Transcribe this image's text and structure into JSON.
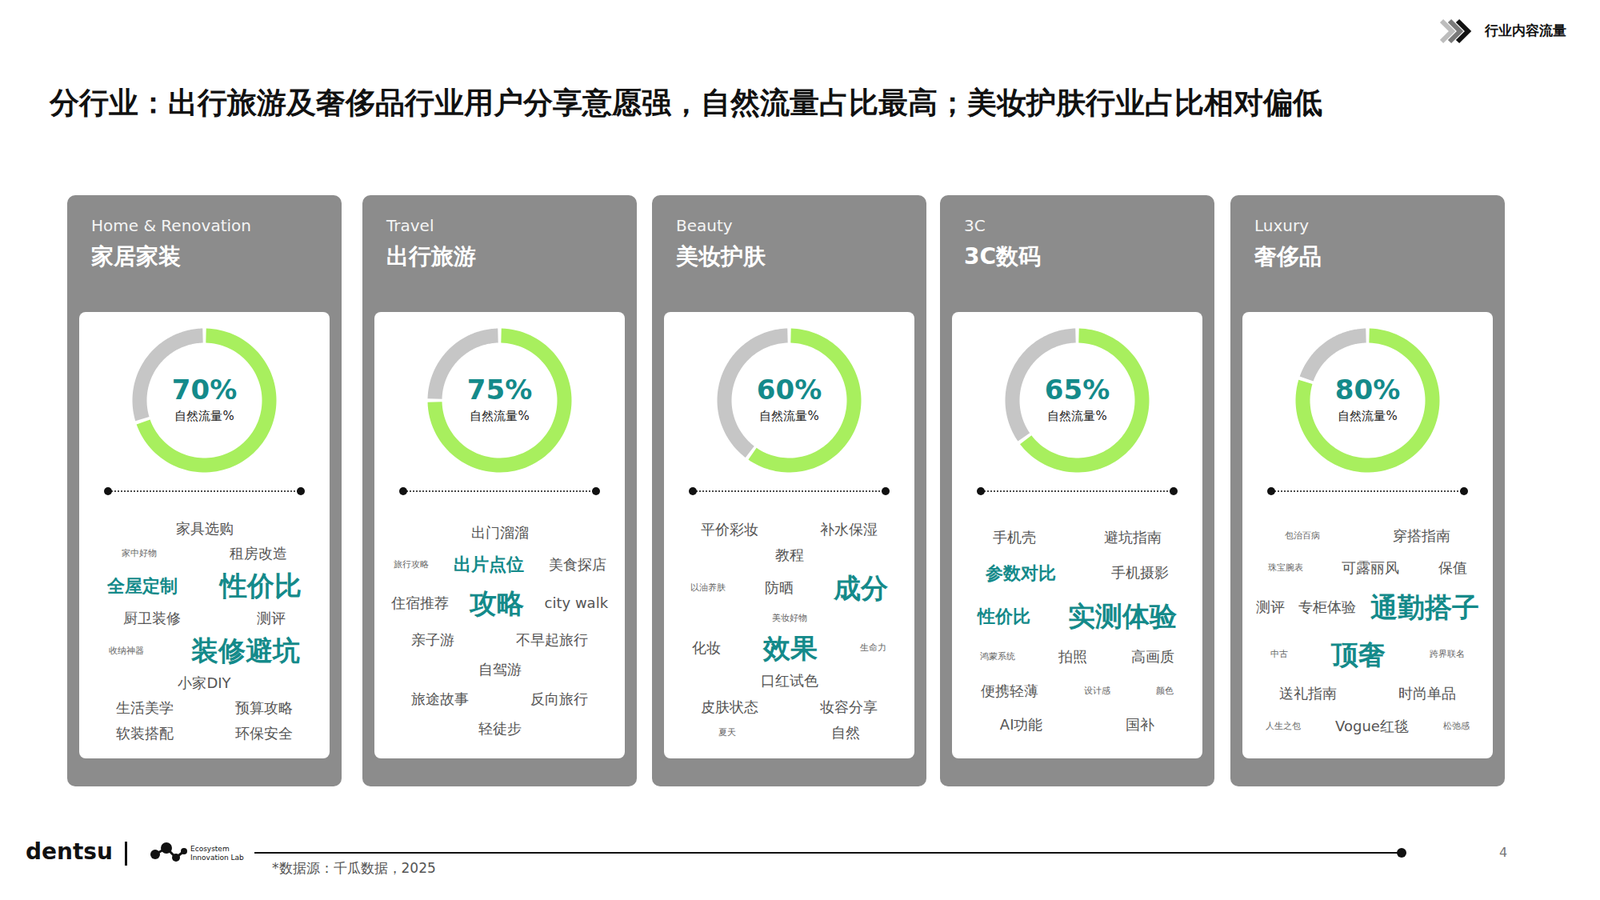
{
  "section": "行业内容流量",
  "title": "分行业：出行旅游及奢侈品行业用户分享意愿强，自然流量占比最高；美妆护肤行业占比相对偏低",
  "chart_data": [
    {
      "type": "donut",
      "subtitle": "Home & Renovation",
      "title": "家居家装",
      "categories": [
        "自然流量%",
        null
      ],
      "values": [
        70,
        30
      ],
      "value_labels": [
        "70%",
        null
      ],
      "colors": [
        "#a8ef5e",
        "#c6c6c6"
      ],
      "data_labels": true,
      "keywords": {
        "rows": [
          [
            "家具选购"
          ],
          [
            "家中好物",
            "租房改造"
          ],
          [
            "全屋定制",
            "性价比"
          ],
          [
            "厨卫装修",
            "测评"
          ],
          [
            "收纳神器",
            "装修避坑"
          ],
          [
            "小家DIY"
          ],
          [
            "生活美学",
            "预算攻略"
          ],
          [
            "软装搭配",
            "环保安全"
          ]
        ],
        "main": [
          "装修避坑",
          "性价比"
        ],
        "highlight": [
          "全屋定制"
        ],
        "small": [
          "家中好物",
          "收纳神器"
        ]
      }
    },
    {
      "type": "donut",
      "subtitle": "Travel",
      "title": "出行旅游",
      "categories": [
        "自然流量%",
        null
      ],
      "values": [
        75,
        25
      ],
      "value_labels": [
        "75%",
        null
      ],
      "colors": [
        "#a8ef5e",
        "#c6c6c6"
      ],
      "data_labels": true,
      "keywords": {
        "rows": [
          [
            "出门溜溜"
          ],
          [
            "旅行攻略",
            "出片点位",
            "美食探店"
          ],
          [
            "住宿推荐",
            "攻略",
            "city walk"
          ],
          [
            "亲子游",
            "不早起旅行"
          ],
          [
            "自驾游"
          ],
          [
            "旅途故事",
            "反向旅行"
          ],
          [
            "轻徒步"
          ]
        ],
        "main": [
          "攻略"
        ],
        "highlight": [
          "出片点位"
        ],
        "small": [
          "旅行攻略"
        ]
      }
    },
    {
      "type": "donut",
      "subtitle": "Beauty",
      "title": "美妆护肤",
      "categories": [
        "自然流量%",
        null
      ],
      "values": [
        60,
        40
      ],
      "value_labels": [
        "60%",
        null
      ],
      "colors": [
        "#a8ef5e",
        "#c6c6c6"
      ],
      "data_labels": true,
      "keywords": {
        "rows": [
          [
            "平价彩妆",
            "补水保湿"
          ],
          [
            "教程"
          ],
          [
            "以油养肤",
            "防晒",
            "成分"
          ],
          [
            "美妆好物"
          ],
          [
            "化妆",
            "效果",
            "生命力"
          ],
          [
            "口红试色"
          ],
          [
            "皮肤状态",
            "妆容分享"
          ],
          [
            "夏天",
            "自然"
          ]
        ],
        "main": [
          "效果",
          "成分"
        ],
        "highlight": [],
        "small": [
          "以油养肤",
          "美妆好物",
          "生命力",
          "夏天"
        ]
      }
    },
    {
      "type": "donut",
      "subtitle": "3C",
      "title": "3C数码",
      "categories": [
        "自然流量%",
        null
      ],
      "values": [
        65,
        35
      ],
      "value_labels": [
        "65%",
        null
      ],
      "colors": [
        "#a8ef5e",
        "#c6c6c6"
      ],
      "data_labels": true,
      "keywords": {
        "rows": [
          [
            "手机壳",
            "避坑指南"
          ],
          [
            "参数对比",
            "手机摄影"
          ],
          [
            "性价比",
            "实测体验"
          ],
          [
            "鸿蒙系统",
            "拍照",
            "高画质"
          ],
          [
            "便携轻薄",
            "设计感",
            "颜色"
          ],
          [
            "AI功能",
            "国补"
          ]
        ],
        "main": [
          "实测体验"
        ],
        "highlight": [
          "参数对比",
          "性价比"
        ],
        "small": [
          "鸿蒙系统",
          "设计感",
          "颜色"
        ]
      }
    },
    {
      "type": "donut",
      "subtitle": "Luxury",
      "title": "奢侈品",
      "categories": [
        "自然流量%",
        null
      ],
      "values": [
        80,
        20
      ],
      "value_labels": [
        "80%",
        null
      ],
      "colors": [
        "#a8ef5e",
        "#c6c6c6"
      ],
      "data_labels": true,
      "keywords": {
        "rows": [
          [
            "包治百病",
            "穿搭指南"
          ],
          [
            "珠宝腕表",
            "可露丽风",
            "保值"
          ],
          [
            "测评",
            "专柜体验",
            "通勤搭子"
          ],
          [
            "中古",
            "顶奢",
            "跨界联名"
          ],
          [
            "送礼指南",
            "时尚单品"
          ],
          [
            "人生之包",
            "Vogue红毯",
            "松弛感"
          ]
        ],
        "main": [
          "通勤搭子",
          "顶奢"
        ],
        "highlight": [],
        "small": [
          "包治百病",
          "珠宝腕表",
          "中古",
          "跨界联名",
          "人生之包",
          "松弛感"
        ]
      }
    }
  ],
  "footer": {
    "brand": "dentsu",
    "lab": [
      "Ecosystem",
      "Innovation Lab"
    ],
    "source": "*数据源：千瓜数据，2025",
    "page": 4
  }
}
